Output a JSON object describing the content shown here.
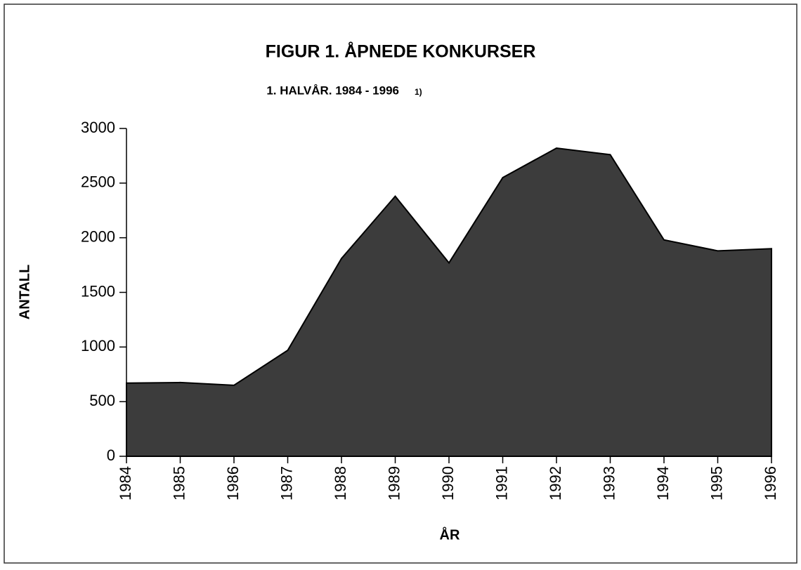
{
  "chart_data": {
    "type": "area",
    "title": "FIGUR 1. ÅPNEDE KONKURSER",
    "subtitle": "1. HALVÅR. 1984 - 1996",
    "subtitle_note": "1)",
    "x_label": "ÅR",
    "y_label": "ANTALL",
    "x": [
      1984,
      1985,
      1986,
      1987,
      1988,
      1989,
      1990,
      1991,
      1992,
      1993,
      1994,
      1995,
      1996
    ],
    "values": [
      670,
      675,
      650,
      970,
      1810,
      2380,
      1770,
      2550,
      2820,
      2760,
      1980,
      1880,
      1900
    ],
    "color": "#3c3c3c",
    "xlim": [
      1984,
      1996
    ],
    "xticks": [
      1984,
      1985,
      1986,
      1987,
      1988,
      1989,
      1990,
      1991,
      1992,
      1993,
      1994,
      1995,
      1996
    ],
    "ylim": [
      0,
      3000
    ],
    "yticks": [
      0,
      500,
      1000,
      1500,
      2000,
      2500,
      3000
    ],
    "grid": false
  }
}
